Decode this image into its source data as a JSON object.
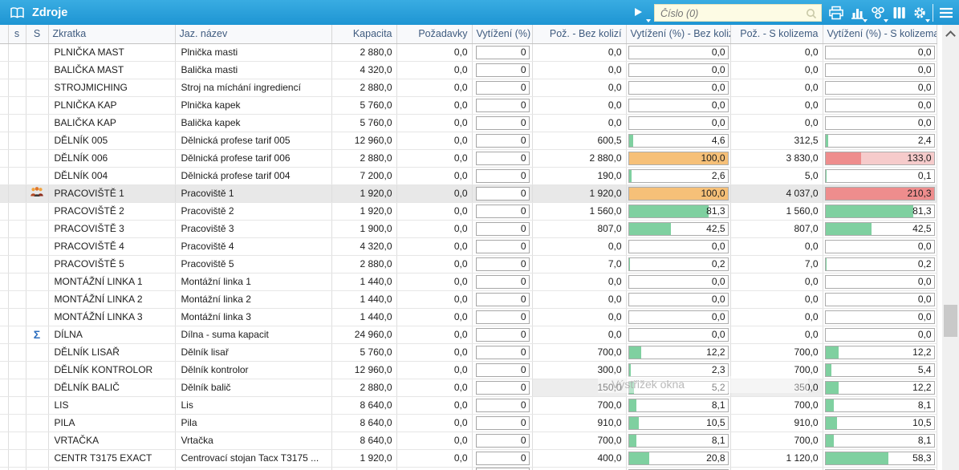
{
  "window": {
    "title": "Zdroje"
  },
  "toolbar": {
    "search": {
      "placeholder": "Číslo (0)"
    },
    "icons": [
      "expand-arrow-icon",
      "search-icon",
      "print-icon",
      "bar-chart-icon",
      "relations-icon",
      "columns-icon",
      "gear-icon",
      "menu-icon"
    ]
  },
  "watermark": {
    "text": "Výstřižek okna"
  },
  "colors": {
    "accent_blue": "#1f9cd9",
    "bar_green": "#7fd0a0",
    "bar_orange": "#f6c078",
    "bar_red": "#ee8d8d",
    "bar_pink": "#f6cbcb",
    "selected_row": "#e8e8e8",
    "sigma_blue": "#2e6fbf"
  },
  "table": {
    "columns": [
      {
        "id": "indicator",
        "label": "",
        "width": 10,
        "align": "center"
      },
      {
        "id": "s",
        "label": "s",
        "width": 22,
        "align": "center"
      },
      {
        "id": "S2",
        "label": "S",
        "width": 28,
        "align": "center"
      },
      {
        "id": "zkratka",
        "label": "Zkratka",
        "width": 158,
        "align": "left"
      },
      {
        "id": "nazev",
        "label": "Jaz. název",
        "width": 195,
        "align": "left"
      },
      {
        "id": "kapacita",
        "label": "Kapacita",
        "width": 81,
        "align": "right"
      },
      {
        "id": "pozadavky",
        "label": "Požadavky",
        "width": 94,
        "align": "right"
      },
      {
        "id": "vytizeni",
        "label": "Vytížení (%)",
        "width": 75,
        "align": "left"
      },
      {
        "id": "poz_bez",
        "label": "Pož. - Bez kolizí",
        "width": 117,
        "align": "right"
      },
      {
        "id": "vyt_bez",
        "label": "Vytížení (%) - Bez kolizí",
        "width": 130,
        "align": "right"
      },
      {
        "id": "poz_s",
        "label": "Pož. - S kolizema",
        "width": 115,
        "align": "right"
      },
      {
        "id": "vyt_s",
        "label": "Vytížení (%) - S kolizema",
        "width": 142,
        "align": "right"
      }
    ],
    "rows": [
      {
        "zkratka": "PLNIČKA MAST",
        "nazev": "Plnička masti",
        "kapacita": "2 880,0",
        "pozadavky": "0,0",
        "vytizeni": "0",
        "poz_bez": "0,0",
        "vyt_bez": {
          "text": "0,0",
          "value": 0
        },
        "poz_s": "0,0",
        "vyt_s": {
          "text": "0,0",
          "value": 0
        },
        "icon": null,
        "selected": false
      },
      {
        "zkratka": "BALIČKA MAST",
        "nazev": "Balička masti",
        "kapacita": "4 320,0",
        "pozadavky": "0,0",
        "vytizeni": "0",
        "poz_bez": "0,0",
        "vyt_bez": {
          "text": "0,0",
          "value": 0
        },
        "poz_s": "0,0",
        "vyt_s": {
          "text": "0,0",
          "value": 0
        },
        "icon": null,
        "selected": false
      },
      {
        "zkratka": "STROJMICHING",
        "nazev": "Stroj na míchání ingrediencí",
        "kapacita": "2 880,0",
        "pozadavky": "0,0",
        "vytizeni": "0",
        "poz_bez": "0,0",
        "vyt_bez": {
          "text": "0,0",
          "value": 0
        },
        "poz_s": "0,0",
        "vyt_s": {
          "text": "0,0",
          "value": 0
        },
        "icon": null,
        "selected": false
      },
      {
        "zkratka": "PLNIČKA KAP",
        "nazev": "Plnička kapek",
        "kapacita": "5 760,0",
        "pozadavky": "0,0",
        "vytizeni": "0",
        "poz_bez": "0,0",
        "vyt_bez": {
          "text": "0,0",
          "value": 0
        },
        "poz_s": "0,0",
        "vyt_s": {
          "text": "0,0",
          "value": 0
        },
        "icon": null,
        "selected": false
      },
      {
        "zkratka": "BALIČKA KAP",
        "nazev": "Balička kapek",
        "kapacita": "5 760,0",
        "pozadavky": "0,0",
        "vytizeni": "0",
        "poz_bez": "0,0",
        "vyt_bez": {
          "text": "0,0",
          "value": 0
        },
        "poz_s": "0,0",
        "vyt_s": {
          "text": "0,0",
          "value": 0
        },
        "icon": null,
        "selected": false
      },
      {
        "zkratka": "DĚLNÍK 005",
        "nazev": "Dělnická profese tarif 005",
        "kapacita": "12 960,0",
        "pozadavky": "0,0",
        "vytizeni": "0",
        "poz_bez": "600,5",
        "vyt_bez": {
          "text": "4,6",
          "value": 4.6
        },
        "poz_s": "312,5",
        "vyt_s": {
          "text": "2,4",
          "value": 2.4
        },
        "icon": null,
        "selected": false
      },
      {
        "zkratka": "DĚLNÍK 006",
        "nazev": "Dělnická profese tarif 006",
        "kapacita": "2 880,0",
        "pozadavky": "0,0",
        "vytizeni": "0",
        "poz_bez": "2 880,0",
        "vyt_bez": {
          "text": "100,0",
          "value": 100
        },
        "poz_s": "3 830,0",
        "vyt_s": {
          "text": "133,0",
          "value": 133
        },
        "icon": null,
        "selected": false
      },
      {
        "zkratka": "DĚLNÍK 004",
        "nazev": "Dělnická profese tarif 004",
        "kapacita": "7 200,0",
        "pozadavky": "0,0",
        "vytizeni": "0",
        "poz_bez": "190,0",
        "vyt_bez": {
          "text": "2,6",
          "value": 2.6
        },
        "poz_s": "5,0",
        "vyt_s": {
          "text": "0,1",
          "value": 0.1
        },
        "icon": null,
        "selected": false
      },
      {
        "zkratka": "PRACOVIŠTĚ 1",
        "nazev": "Pracoviště 1",
        "kapacita": "1 920,0",
        "pozadavky": "0,0",
        "vytizeni": "0",
        "poz_bez": "1 920,0",
        "vyt_bez": {
          "text": "100,0",
          "value": 100
        },
        "poz_s": "4 037,0",
        "vyt_s": {
          "text": "210,3",
          "value": 210.3
        },
        "icon": "group-icon",
        "selected": true
      },
      {
        "zkratka": "PRACOVIŠTĚ 2",
        "nazev": "Pracoviště 2",
        "kapacita": "1 920,0",
        "pozadavky": "0,0",
        "vytizeni": "0",
        "poz_bez": "1 560,0",
        "vyt_bez": {
          "text": "81,3",
          "value": 81.3
        },
        "poz_s": "1 560,0",
        "vyt_s": {
          "text": "81,3",
          "value": 81.3
        },
        "icon": null,
        "selected": false
      },
      {
        "zkratka": "PRACOVIŠTĚ 3",
        "nazev": "Pracoviště 3",
        "kapacita": "1 900,0",
        "pozadavky": "0,0",
        "vytizeni": "0",
        "poz_bez": "807,0",
        "vyt_bez": {
          "text": "42,5",
          "value": 42.5
        },
        "poz_s": "807,0",
        "vyt_s": {
          "text": "42,5",
          "value": 42.5
        },
        "icon": null,
        "selected": false
      },
      {
        "zkratka": "PRACOVIŠTĚ 4",
        "nazev": "Pracoviště 4",
        "kapacita": "4 320,0",
        "pozadavky": "0,0",
        "vytizeni": "0",
        "poz_bez": "0,0",
        "vyt_bez": {
          "text": "0,0",
          "value": 0
        },
        "poz_s": "0,0",
        "vyt_s": {
          "text": "0,0",
          "value": 0
        },
        "icon": null,
        "selected": false
      },
      {
        "zkratka": "PRACOVIŠTĚ 5",
        "nazev": "Pracoviště 5",
        "kapacita": "2 880,0",
        "pozadavky": "0,0",
        "vytizeni": "0",
        "poz_bez": "7,0",
        "vyt_bez": {
          "text": "0,2",
          "value": 0.2
        },
        "poz_s": "7,0",
        "vyt_s": {
          "text": "0,2",
          "value": 0.2
        },
        "icon": null,
        "selected": false
      },
      {
        "zkratka": "MONTÁŽNÍ LINKA 1",
        "nazev": "Montážní linka 1",
        "kapacita": "1 440,0",
        "pozadavky": "0,0",
        "vytizeni": "0",
        "poz_bez": "0,0",
        "vyt_bez": {
          "text": "0,0",
          "value": 0
        },
        "poz_s": "0,0",
        "vyt_s": {
          "text": "0,0",
          "value": 0
        },
        "icon": null,
        "selected": false
      },
      {
        "zkratka": "MONTÁŽNÍ LINKA 2",
        "nazev": "Montážní linka 2",
        "kapacita": "1 440,0",
        "pozadavky": "0,0",
        "vytizeni": "0",
        "poz_bez": "0,0",
        "vyt_bez": {
          "text": "0,0",
          "value": 0
        },
        "poz_s": "0,0",
        "vyt_s": {
          "text": "0,0",
          "value": 0
        },
        "icon": null,
        "selected": false
      },
      {
        "zkratka": "MONTÁŽNÍ LINKA 3",
        "nazev": "Montážní linka 3",
        "kapacita": "1 440,0",
        "pozadavky": "0,0",
        "vytizeni": "0",
        "poz_bez": "0,0",
        "vyt_bez": {
          "text": "0,0",
          "value": 0
        },
        "poz_s": "0,0",
        "vyt_s": {
          "text": "0,0",
          "value": 0
        },
        "icon": null,
        "selected": false
      },
      {
        "zkratka": "DÍLNA",
        "nazev": "Dílna - suma kapacit",
        "kapacita": "24 960,0",
        "pozadavky": "0,0",
        "vytizeni": "0",
        "poz_bez": "0,0",
        "vyt_bez": {
          "text": "0,0",
          "value": 0
        },
        "poz_s": "0,0",
        "vyt_s": {
          "text": "0,0",
          "value": 0
        },
        "icon": "sigma-icon",
        "selected": false
      },
      {
        "zkratka": "DĚLNÍK LISAŘ",
        "nazev": "Dělník lisař",
        "kapacita": "5 760,0",
        "pozadavky": "0,0",
        "vytizeni": "0",
        "poz_bez": "700,0",
        "vyt_bez": {
          "text": "12,2",
          "value": 12.2
        },
        "poz_s": "700,0",
        "vyt_s": {
          "text": "12,2",
          "value": 12.2
        },
        "icon": null,
        "selected": false
      },
      {
        "zkratka": "DĚLNÍK KONTROLOR",
        "nazev": "Dělník kontrolor",
        "kapacita": "12 960,0",
        "pozadavky": "0,0",
        "vytizeni": "0",
        "poz_bez": "300,0",
        "vyt_bez": {
          "text": "2,3",
          "value": 2.3
        },
        "poz_s": "700,0",
        "vyt_s": {
          "text": "5,4",
          "value": 5.4
        },
        "icon": null,
        "selected": false
      },
      {
        "zkratka": "DĚLNÍK BALIČ",
        "nazev": "Dělník balič",
        "kapacita": "2 880,0",
        "pozadavky": "0,0",
        "vytizeni": "0",
        "poz_bez": "150,0",
        "vyt_bez": {
          "text": "5,2",
          "value": 5.2
        },
        "poz_s": "350,0",
        "vyt_s": {
          "text": "12,2",
          "value": 12.2
        },
        "icon": null,
        "selected": false,
        "dim": true
      },
      {
        "zkratka": "LIS",
        "nazev": "Lis",
        "kapacita": "8 640,0",
        "pozadavky": "0,0",
        "vytizeni": "0",
        "poz_bez": "700,0",
        "vyt_bez": {
          "text": "8,1",
          "value": 8.1
        },
        "poz_s": "700,0",
        "vyt_s": {
          "text": "8,1",
          "value": 8.1
        },
        "icon": null,
        "selected": false
      },
      {
        "zkratka": "PILA",
        "nazev": "Pila",
        "kapacita": "8 640,0",
        "pozadavky": "0,0",
        "vytizeni": "0",
        "poz_bez": "910,0",
        "vyt_bez": {
          "text": "10,5",
          "value": 10.5
        },
        "poz_s": "910,0",
        "vyt_s": {
          "text": "10,5",
          "value": 10.5
        },
        "icon": null,
        "selected": false
      },
      {
        "zkratka": "VRTAČKA",
        "nazev": "Vrtačka",
        "kapacita": "8 640,0",
        "pozadavky": "0,0",
        "vytizeni": "0",
        "poz_bez": "700,0",
        "vyt_bez": {
          "text": "8,1",
          "value": 8.1
        },
        "poz_s": "700,0",
        "vyt_s": {
          "text": "8,1",
          "value": 8.1
        },
        "icon": null,
        "selected": false
      },
      {
        "zkratka": "CENTR T3175 EXACT",
        "nazev": "Centrovací stojan Tacx T3175 ...",
        "kapacita": "1 920,0",
        "pozadavky": "0,0",
        "vytizeni": "0",
        "poz_bez": "400,0",
        "vyt_bez": {
          "text": "20,8",
          "value": 20.8
        },
        "poz_s": "1 120,0",
        "vyt_s": {
          "text": "58,3",
          "value": 58.3
        },
        "icon": null,
        "selected": false
      },
      {
        "zkratka": "",
        "nazev": "",
        "kapacita": "",
        "pozadavky": "",
        "vytizeni": "",
        "poz_bez": "",
        "vyt_bez": {
          "text": "",
          "value": 0
        },
        "poz_s": "",
        "vyt_s": {
          "text": "",
          "value": 0
        },
        "icon": null,
        "selected": false,
        "partial": true
      }
    ]
  }
}
